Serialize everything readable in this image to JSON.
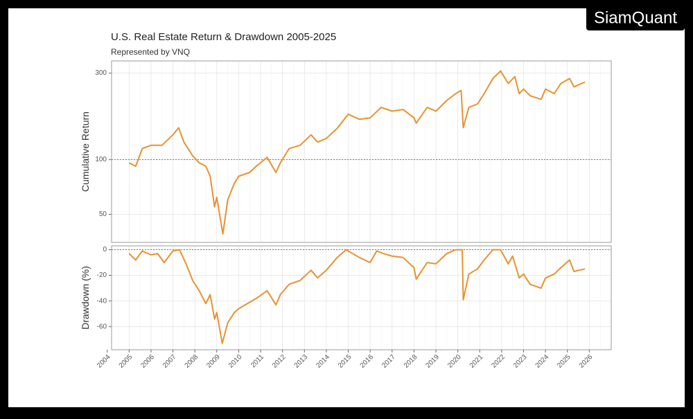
{
  "logo": "SiamQuant",
  "chart_data": [
    {
      "type": "line",
      "title": "U.S. Real Estate Return & Drawdown 2005-2025",
      "subtitle": "Represented by VNQ",
      "ylabel": "Cumulative Return",
      "log_y": true,
      "color": "#e8922f",
      "grid": true,
      "hline": 100,
      "xlim": [
        2004.2,
        2027
      ],
      "ylim": [
        35,
        350
      ],
      "yticks": [
        50,
        100,
        300
      ],
      "x": [
        2005.0,
        2005.3,
        2005.6,
        2006.0,
        2006.5,
        2007.0,
        2007.26,
        2007.5,
        2007.9,
        2008.2,
        2008.5,
        2008.7,
        2008.9,
        2009.0,
        2009.28,
        2009.5,
        2009.8,
        2010.0,
        2010.5,
        2010.8,
        2011.3,
        2011.7,
        2011.9,
        2012.3,
        2012.8,
        2013.3,
        2013.6,
        2014.0,
        2014.5,
        2015.0,
        2015.5,
        2016.0,
        2016.5,
        2017.0,
        2017.5,
        2018.0,
        2018.1,
        2018.6,
        2019.0,
        2019.5,
        2019.9,
        2020.15,
        2020.25,
        2020.5,
        2020.9,
        2021.2,
        2021.6,
        2021.95,
        2022.3,
        2022.6,
        2022.8,
        2023.0,
        2023.3,
        2023.8,
        2024.0,
        2024.4,
        2024.7,
        2025.1,
        2025.3,
        2025.8
      ],
      "values": [
        96,
        92,
        115,
        120,
        120,
        137,
        150,
        125,
        105,
        96,
        92,
        81,
        55,
        62,
        39,
        60,
        74,
        81,
        85,
        92,
        103,
        85,
        96,
        115,
        120,
        137,
        125,
        131,
        149,
        178,
        167,
        170,
        194,
        185,
        189,
        170,
        159,
        194,
        185,
        212,
        231,
        241,
        150,
        194,
        203,
        231,
        280,
        308,
        263,
        287,
        231,
        245,
        225,
        215,
        245,
        231,
        263,
        280,
        252,
        268
      ]
    },
    {
      "type": "line",
      "ylabel": "Drawdown (%)",
      "color": "#e8922f",
      "grid": true,
      "hline": 0,
      "xlim": [
        2004.2,
        2027
      ],
      "ylim": [
        -78,
        3
      ],
      "yticks": [
        -60,
        -40,
        -20,
        0
      ],
      "xticks": [
        2004,
        2005,
        2006,
        2007,
        2008,
        2009,
        2010,
        2011,
        2012,
        2013,
        2014,
        2015,
        2016,
        2017,
        2018,
        2019,
        2020,
        2021,
        2022,
        2023,
        2024,
        2025,
        2026
      ],
      "x": [
        2005.0,
        2005.3,
        2005.6,
        2006.0,
        2006.3,
        2006.6,
        2007.0,
        2007.3,
        2007.6,
        2007.9,
        2008.2,
        2008.5,
        2008.7,
        2008.9,
        2009.0,
        2009.25,
        2009.5,
        2009.8,
        2010.0,
        2010.5,
        2010.8,
        2011.3,
        2011.7,
        2011.9,
        2012.3,
        2012.8,
        2013.3,
        2013.6,
        2014.0,
        2014.5,
        2014.9,
        2015.5,
        2016.0,
        2016.3,
        2016.6,
        2017.0,
        2017.5,
        2018.0,
        2018.1,
        2018.6,
        2019.0,
        2019.5,
        2019.9,
        2020.2,
        2020.25,
        2020.5,
        2020.9,
        2021.2,
        2021.6,
        2021.95,
        2022.3,
        2022.5,
        2022.8,
        2023.0,
        2023.3,
        2023.8,
        2024.0,
        2024.4,
        2024.7,
        2025.1,
        2025.3,
        2025.8
      ],
      "values": [
        -3,
        -8,
        -1,
        -4,
        -3,
        -10,
        -1,
        0,
        -11,
        -24,
        -32,
        -42,
        -35,
        -54,
        -49,
        -73,
        -57,
        -49,
        -46,
        -41,
        -38,
        -32,
        -43,
        -35,
        -27,
        -24,
        -16,
        -22,
        -16,
        -6,
        0,
        -6,
        -10,
        -1,
        -3,
        -5,
        -6,
        -14,
        -23,
        -10,
        -11,
        -3,
        0,
        0,
        -39,
        -19,
        -15,
        -8,
        0,
        0,
        -11,
        -5,
        -22,
        -19,
        -27,
        -30,
        -22,
        -19,
        -14,
        -8,
        -17,
        -15
      ]
    }
  ]
}
